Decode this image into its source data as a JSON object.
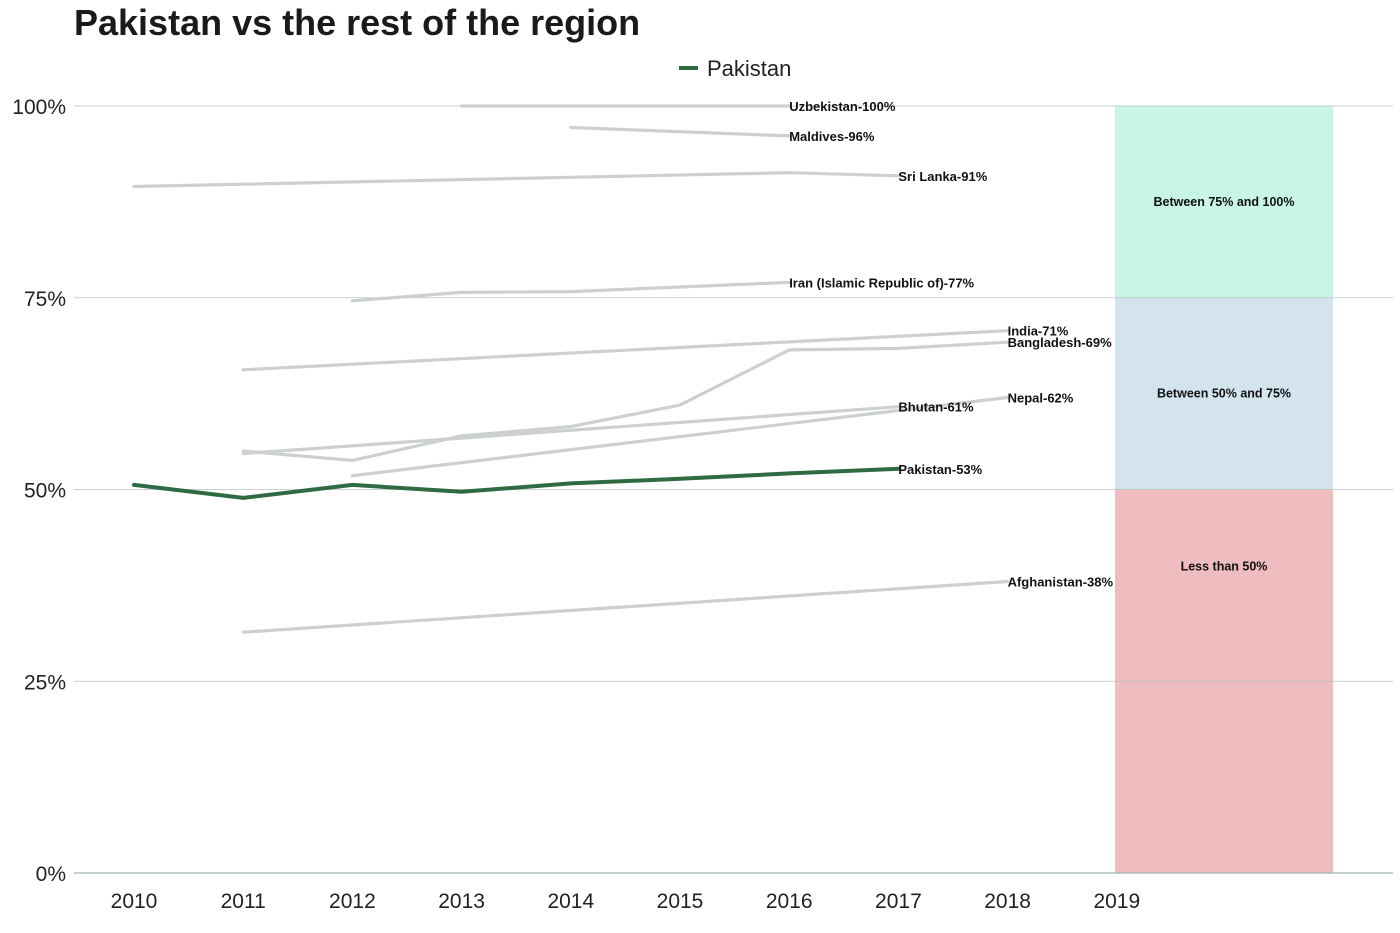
{
  "title": "Pakistan vs the rest of the region",
  "legend": [
    {
      "label": "Pakistan",
      "color": "#2e6b43"
    }
  ],
  "chart_data": {
    "type": "line",
    "title": "Pakistan vs the rest of the region",
    "xlabel": "",
    "ylabel": "",
    "xlim": [
      2010,
      2019
    ],
    "ylim": [
      0,
      100
    ],
    "x_ticks": [
      "2010",
      "2011",
      "2012",
      "2013",
      "2014",
      "2015",
      "2016",
      "2017",
      "2018",
      "2019"
    ],
    "y_ticks": [
      "0%",
      "25%",
      "50%",
      "75%",
      "100%"
    ],
    "grid": "horizontal",
    "legend_position": "top-center",
    "highlight_color": "#2e6b43",
    "other_color": "#cdd0d1",
    "series": [
      {
        "name": "Uzbekistan",
        "label": "Uzbekistan-100%",
        "x": [
          2013,
          2016
        ],
        "values": [
          100,
          100
        ]
      },
      {
        "name": "Maldives",
        "label": "Maldives-96%",
        "x": [
          2014,
          2016
        ],
        "values": [
          97.2,
          96.1
        ]
      },
      {
        "name": "Sri Lanka",
        "label": "Sri Lanka-91%",
        "x": [
          2010,
          2016,
          2017
        ],
        "values": [
          89.5,
          91.3,
          90.9
        ]
      },
      {
        "name": "Iran (Islamic Republic of)",
        "label": "Iran (Islamic Republic of)-77%",
        "x": [
          2012,
          2013,
          2014,
          2016
        ],
        "values": [
          74.6,
          75.7,
          75.8,
          77.0
        ]
      },
      {
        "name": "India",
        "label": "India-71%",
        "x": [
          2011,
          2018
        ],
        "values": [
          65.6,
          70.7
        ]
      },
      {
        "name": "Bangladesh",
        "label": "Bangladesh-69%",
        "x": [
          2011,
          2012,
          2013,
          2014,
          2015,
          2016,
          2017,
          2018
        ],
        "values": [
          55.0,
          53.8,
          57.0,
          58.2,
          61.0,
          68.2,
          68.4,
          69.2
        ]
      },
      {
        "name": "Nepal",
        "label": "Nepal-62%",
        "x": [
          2012,
          2018
        ],
        "values": [
          51.8,
          62.0
        ]
      },
      {
        "name": "Bhutan",
        "label": "Bhutan-61%",
        "x": [
          2011,
          2013,
          2017
        ],
        "values": [
          54.7,
          56.7,
          60.8
        ]
      },
      {
        "name": "Afghanistan",
        "label": "Afghanistan-38%",
        "x": [
          2011,
          2018
        ],
        "values": [
          31.4,
          38.0
        ]
      },
      {
        "name": "Pakistan",
        "label": "Pakistan-53%",
        "highlight": true,
        "x": [
          2010,
          2011,
          2012,
          2013,
          2014,
          2015,
          2016,
          2017
        ],
        "values": [
          50.6,
          48.9,
          50.6,
          49.7,
          50.8,
          51.4,
          52.1,
          52.7
        ]
      }
    ],
    "bands": [
      {
        "label": "Between 75% and 100%",
        "from": 75,
        "to": 100,
        "color": "#c8f5e4"
      },
      {
        "label": "Between 50% and 75%",
        "from": 50,
        "to": 75,
        "color": "#d3e4ef"
      },
      {
        "label": "Less than 50%",
        "from": 0,
        "to": 50,
        "color": "#efbcc0"
      }
    ]
  }
}
